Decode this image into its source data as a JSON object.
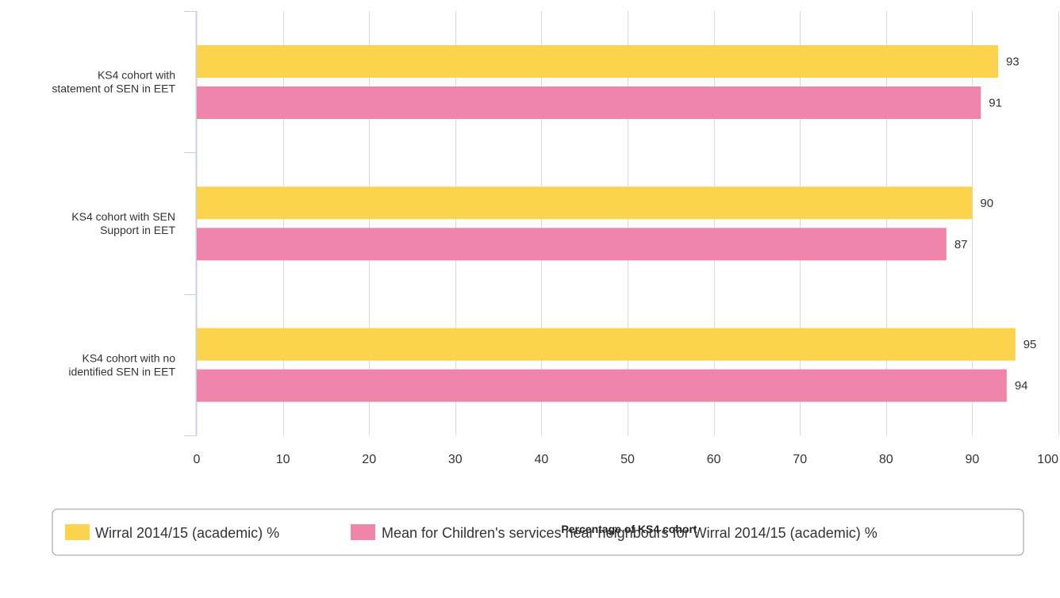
{
  "chart_data": {
    "type": "bar",
    "orientation": "horizontal",
    "categories": [
      [
        "KS4 cohort with",
        "statement of SEN in EET"
      ],
      [
        "KS4 cohort with SEN",
        "Support in EET"
      ],
      [
        "KS4 cohort with no",
        "identified SEN in EET"
      ]
    ],
    "series": [
      {
        "name": "Wirral 2014/15 (academic) %",
        "color": "#fcd34d",
        "values": [
          93,
          90,
          95
        ]
      },
      {
        "name": "Mean for Children's services near neighbours for Wirral 2014/15 (academic) %",
        "color": "#f085ac",
        "values": [
          91,
          87,
          94
        ]
      }
    ],
    "xlabel": "Percentage of KS4 cohort",
    "ylabel": "",
    "xlim": [
      0,
      100
    ],
    "xticks": [
      0,
      10,
      20,
      30,
      40,
      50,
      60,
      70,
      80,
      90,
      100
    ],
    "grid": true,
    "data_labels": true,
    "legend_position": "bottom"
  },
  "colors": {
    "grid": "#d9d9d9",
    "axis": "#c8d2dc",
    "legend_border": "#999999"
  }
}
